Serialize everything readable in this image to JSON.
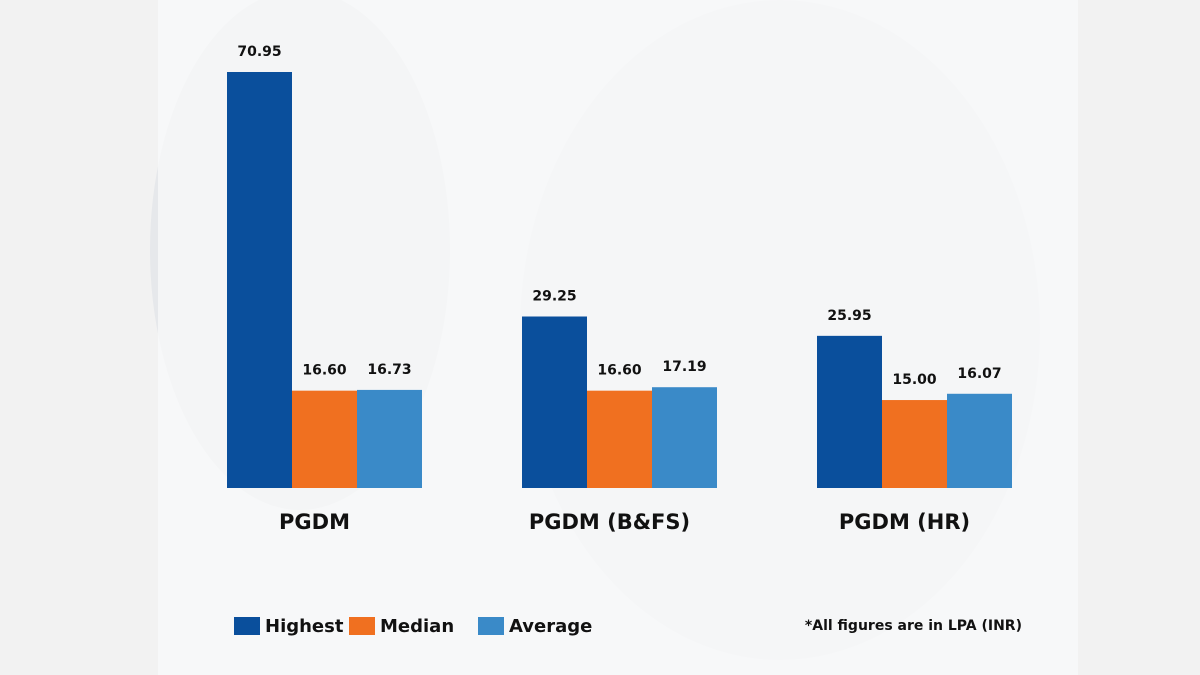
{
  "chart_data": {
    "type": "bar",
    "categories": [
      "PGDM",
      "PGDM (B&FS)",
      "PGDM (HR)"
    ],
    "series": [
      {
        "name": "Highest",
        "color": "#0a4f9c",
        "values": [
          70.95,
          29.25,
          25.95
        ],
        "value_labels": [
          "70.95",
          "29.25",
          "25.95"
        ]
      },
      {
        "name": "Median",
        "color": "#f07020",
        "values": [
          16.6,
          16.6,
          15.0
        ],
        "value_labels": [
          "16.60",
          "16.60",
          "15.00"
        ]
      },
      {
        "name": "Average",
        "color": "#3a8ac8",
        "values": [
          16.73,
          17.19,
          16.07
        ],
        "value_labels": [
          "16.73",
          "17.19",
          "16.07"
        ]
      }
    ],
    "note": "*All figures are in LPA (INR)",
    "legend": "bottom-left"
  }
}
